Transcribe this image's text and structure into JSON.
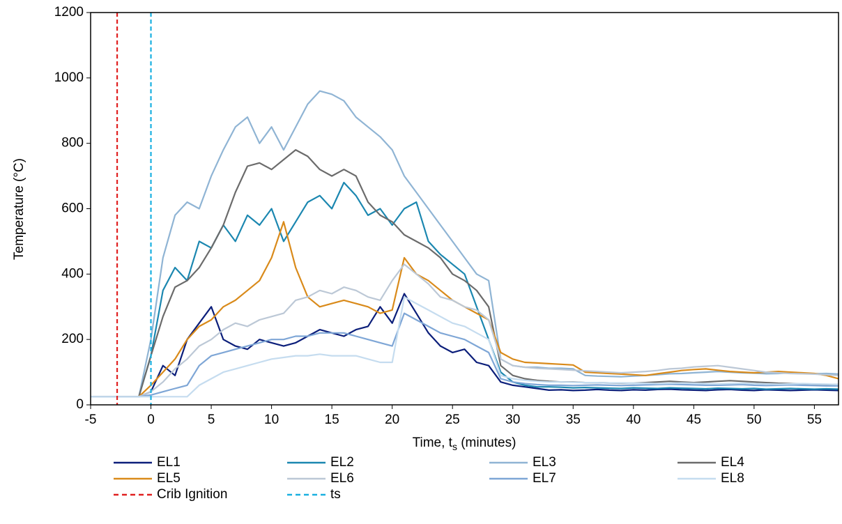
{
  "chart_data": {
    "type": "line",
    "xlabel": [
      "Time, t",
      "s",
      " (minutes)"
    ],
    "ylabel": "Temperature (°C)",
    "xlim": [
      -5,
      57
    ],
    "ylim": [
      0,
      1200
    ],
    "xticks": [
      -5,
      0,
      5,
      10,
      15,
      20,
      25,
      30,
      35,
      40,
      45,
      50,
      55
    ],
    "yticks": [
      0,
      200,
      400,
      600,
      800,
      1000,
      1200
    ],
    "grid": false,
    "x": [
      -5,
      -4,
      -3,
      -2,
      -1,
      0,
      1,
      2,
      3,
      4,
      5,
      6,
      7,
      8,
      9,
      10,
      11,
      12,
      13,
      14,
      15,
      16,
      17,
      18,
      19,
      20,
      21,
      22,
      23,
      24,
      25,
      26,
      27,
      28,
      29,
      30,
      31,
      32,
      33,
      34,
      35,
      36,
      37,
      38,
      39,
      40,
      41,
      42,
      43,
      44,
      45,
      46,
      47,
      48,
      49,
      50,
      51,
      52,
      53,
      54,
      55,
      56,
      57
    ],
    "series": [
      {
        "name": "EL1",
        "color": "#0b1e7a",
        "values": [
          25,
          25,
          25,
          25,
          25,
          40,
          120,
          90,
          200,
          250,
          300,
          200,
          180,
          170,
          200,
          190,
          180,
          190,
          210,
          230,
          220,
          210,
          230,
          240,
          300,
          250,
          340,
          280,
          220,
          180,
          160,
          170,
          130,
          120,
          70,
          60,
          55,
          50,
          45,
          46,
          44,
          45,
          47,
          45,
          44,
          46,
          45,
          47,
          48,
          46,
          45,
          44,
          46,
          47,
          45,
          44,
          46,
          45,
          44,
          45,
          46,
          45,
          44
        ]
      },
      {
        "name": "EL2",
        "color": "#1b87b0",
        "values": [
          25,
          25,
          25,
          25,
          25,
          150,
          350,
          420,
          380,
          500,
          480,
          550,
          500,
          580,
          550,
          600,
          500,
          560,
          620,
          640,
          600,
          680,
          640,
          580,
          600,
          550,
          600,
          620,
          500,
          460,
          430,
          400,
          300,
          200,
          100,
          70,
          60,
          55,
          55,
          54,
          52,
          53,
          52,
          51,
          50,
          52,
          51,
          50,
          52,
          51,
          50,
          49,
          51,
          50,
          49,
          50,
          48,
          49,
          50,
          49,
          48,
          49,
          48
        ]
      },
      {
        "name": "EL3",
        "color": "#8fb4d4",
        "values": [
          25,
          25,
          25,
          25,
          25,
          200,
          450,
          580,
          620,
          600,
          700,
          780,
          850,
          880,
          800,
          850,
          780,
          850,
          920,
          960,
          950,
          930,
          880,
          850,
          820,
          780,
          700,
          650,
          600,
          550,
          500,
          450,
          400,
          380,
          140,
          120,
          115,
          115,
          112,
          112,
          110,
          90,
          88,
          87,
          86,
          88,
          90,
          92,
          95,
          96,
          98,
          100,
          102,
          100,
          98,
          97,
          95,
          96,
          98,
          97,
          95,
          96,
          94
        ]
      },
      {
        "name": "EL4",
        "color": "#6b6b6b",
        "values": [
          25,
          25,
          25,
          25,
          25,
          150,
          270,
          360,
          380,
          420,
          480,
          550,
          650,
          730,
          740,
          720,
          750,
          780,
          760,
          720,
          700,
          720,
          700,
          620,
          580,
          560,
          520,
          500,
          480,
          450,
          400,
          380,
          350,
          300,
          120,
          90,
          80,
          75,
          72,
          70,
          70,
          68,
          68,
          67,
          66,
          66,
          68,
          70,
          72,
          70,
          68,
          70,
          72,
          74,
          72,
          70,
          68,
          66,
          65,
          64,
          63,
          62,
          62
        ]
      },
      {
        "name": "EL5",
        "color": "#d98a1a",
        "values": [
          25,
          25,
          25,
          25,
          25,
          60,
          100,
          140,
          200,
          240,
          260,
          300,
          320,
          350,
          380,
          450,
          560,
          420,
          330,
          300,
          310,
          320,
          310,
          300,
          280,
          290,
          450,
          400,
          380,
          350,
          320,
          300,
          280,
          260,
          160,
          140,
          130,
          128,
          126,
          124,
          122,
          100,
          98,
          96,
          94,
          92,
          90,
          95,
          100,
          105,
          108,
          110,
          106,
          102,
          100,
          98,
          100,
          102,
          100,
          98,
          96,
          90,
          80
        ]
      },
      {
        "name": "EL6",
        "color": "#bcc8d6",
        "values": [
          25,
          25,
          25,
          25,
          25,
          40,
          70,
          110,
          140,
          180,
          200,
          230,
          250,
          240,
          260,
          270,
          280,
          320,
          330,
          350,
          340,
          360,
          350,
          330,
          320,
          380,
          430,
          400,
          370,
          330,
          320,
          300,
          290,
          260,
          140,
          120,
          115,
          112,
          110,
          108,
          106,
          104,
          102,
          100,
          98,
          100,
          102,
          105,
          110,
          112,
          116,
          118,
          120,
          115,
          110,
          105,
          100,
          98,
          96,
          95,
          94,
          92,
          90
        ]
      },
      {
        "name": "EL7",
        "color": "#7ea6d6",
        "values": [
          25,
          25,
          25,
          25,
          25,
          30,
          40,
          50,
          60,
          120,
          150,
          160,
          170,
          180,
          190,
          200,
          200,
          210,
          210,
          220,
          220,
          220,
          210,
          200,
          190,
          180,
          280,
          260,
          240,
          220,
          210,
          200,
          180,
          160,
          80,
          70,
          65,
          62,
          60,
          60,
          59,
          60,
          61,
          60,
          59,
          60,
          61,
          62,
          63,
          62,
          61,
          60,
          60,
          61,
          62,
          60,
          59,
          60,
          61,
          60,
          59,
          58,
          58
        ]
      },
      {
        "name": "EL8",
        "color": "#c5dcef",
        "values": [
          25,
          25,
          25,
          25,
          25,
          25,
          25,
          25,
          25,
          60,
          80,
          100,
          110,
          120,
          130,
          140,
          145,
          150,
          150,
          155,
          150,
          150,
          150,
          140,
          130,
          130,
          330,
          310,
          290,
          270,
          250,
          240,
          220,
          200,
          90,
          80,
          75,
          72,
          70,
          70,
          69,
          68,
          68,
          67,
          67,
          66,
          66,
          65,
          66,
          67,
          66,
          65,
          64,
          65,
          66,
          65,
          64,
          63,
          64,
          65,
          64,
          63,
          62
        ]
      }
    ],
    "vlines": [
      {
        "name": "Crib Ignition",
        "x": -2.8,
        "color": "#e02020"
      },
      {
        "name": "ts",
        "x": 0,
        "color": "#1ab0e0"
      }
    ]
  }
}
